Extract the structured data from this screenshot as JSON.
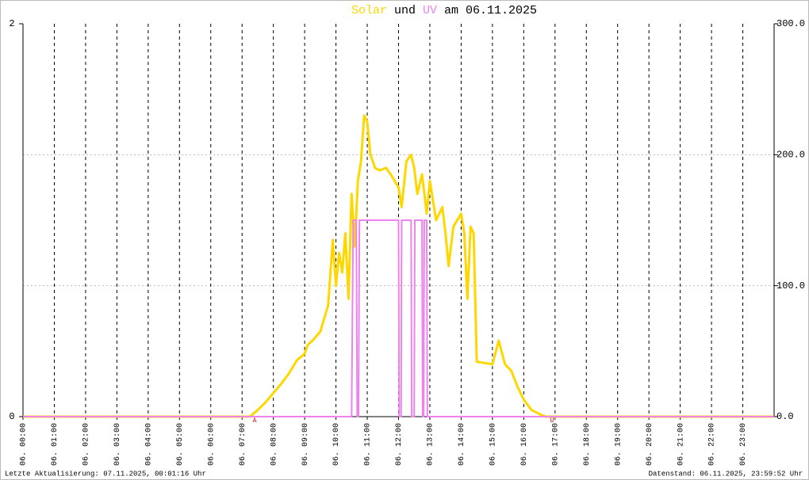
{
  "chart_data": {
    "type": "line",
    "title_parts": [
      "und",
      "am 06.11.2025"
    ],
    "xlim": [
      0,
      24
    ],
    "xticks": [
      {
        "value": 0,
        "label": "06. 00:00"
      },
      {
        "value": 1,
        "label": "06. 01:00"
      },
      {
        "value": 2,
        "label": "06. 02:00"
      },
      {
        "value": 3,
        "label": "06. 03:00"
      },
      {
        "value": 4,
        "label": "06. 04:00"
      },
      {
        "value": 5,
        "label": "06. 05:00"
      },
      {
        "value": 6,
        "label": "06. 06:00"
      },
      {
        "value": 7,
        "label": "06. 07:00"
      },
      {
        "value": 8,
        "label": "06. 08:00"
      },
      {
        "value": 9,
        "label": "06. 09:00"
      },
      {
        "value": 10,
        "label": "06. 10:00"
      },
      {
        "value": 11,
        "label": "06. 11:00"
      },
      {
        "value": 12,
        "label": "06. 12:00"
      },
      {
        "value": 13,
        "label": "06. 13:00"
      },
      {
        "value": 14,
        "label": "06. 14:00"
      },
      {
        "value": 15,
        "label": "06. 15:00"
      },
      {
        "value": 16,
        "label": "06. 16:00"
      },
      {
        "value": 17,
        "label": "06. 17:00"
      },
      {
        "value": 18,
        "label": "06. 18:00"
      },
      {
        "value": 19,
        "label": "06. 19:00"
      },
      {
        "value": 20,
        "label": "06. 20:00"
      },
      {
        "value": 21,
        "label": "06. 21:00"
      },
      {
        "value": 22,
        "label": "06. 22:00"
      },
      {
        "value": 23,
        "label": "06. 23:00"
      }
    ],
    "ylim": [
      0,
      2
    ],
    "yticks": [
      0,
      2
    ],
    "y2lim": [
      0,
      300
    ],
    "y2ticks": [
      {
        "value": 0,
        "label": "0.0"
      },
      {
        "value": 100,
        "label": "100.0"
      },
      {
        "value": 200,
        "label": "200.0"
      },
      {
        "value": 300,
        "label": "300.0"
      }
    ],
    "grid": true,
    "series": [
      {
        "name": "Solar",
        "color": "#ffd700",
        "axis": "y2",
        "x": [
          0,
          7.25,
          7.5,
          7.75,
          8.0,
          8.25,
          8.5,
          8.75,
          9.0,
          9.1,
          9.25,
          9.5,
          9.75,
          9.9,
          10.0,
          10.1,
          10.2,
          10.3,
          10.4,
          10.5,
          10.6,
          10.7,
          10.8,
          10.9,
          11.0,
          11.1,
          11.25,
          11.4,
          11.6,
          11.75,
          12.0,
          12.1,
          12.25,
          12.4,
          12.5,
          12.6,
          12.75,
          12.9,
          13.0,
          13.2,
          13.4,
          13.5,
          13.6,
          13.75,
          14.0,
          14.1,
          14.2,
          14.3,
          14.4,
          14.5,
          15.0,
          15.2,
          15.4,
          15.6,
          15.8,
          16.0,
          16.25,
          16.5,
          16.7,
          24
        ],
        "values": [
          0,
          0,
          5,
          11,
          18,
          25,
          33,
          43,
          48,
          55,
          58,
          65,
          85,
          135,
          100,
          125,
          110,
          140,
          90,
          170,
          130,
          180,
          195,
          230,
          225,
          200,
          190,
          188,
          190,
          185,
          175,
          160,
          195,
          200,
          190,
          170,
          185,
          155,
          180,
          150,
          160,
          140,
          115,
          145,
          155,
          140,
          90,
          145,
          140,
          42,
          40,
          58,
          40,
          35,
          23,
          13,
          5,
          2,
          0,
          0
        ]
      },
      {
        "name": "UV",
        "color": "#ee82ee",
        "x": [
          0,
          10.5,
          10.55,
          10.65,
          10.68,
          10.72,
          10.75,
          12.0,
          12.02,
          12.08,
          12.1,
          12.4,
          12.42,
          12.5,
          12.52,
          12.75,
          12.77,
          12.8,
          12.82,
          12.9,
          12.92,
          24
        ],
        "values": [
          0,
          0,
          1,
          1,
          0,
          0,
          1,
          1,
          0,
          0,
          1,
          1,
          0,
          0,
          1,
          1,
          0,
          0,
          1,
          1,
          0,
          0
        ]
      }
    ],
    "annotations": [
      {
        "text": "A",
        "x": 7.4
      },
      {
        "text": "U",
        "x": 16.9
      }
    ],
    "footer_left": "Letzte Aktualisierung: 07.11.2025, 00:01:16 Uhr",
    "footer_right": "Datenstand: 06.11.2025, 23:59:52 Uhr"
  }
}
